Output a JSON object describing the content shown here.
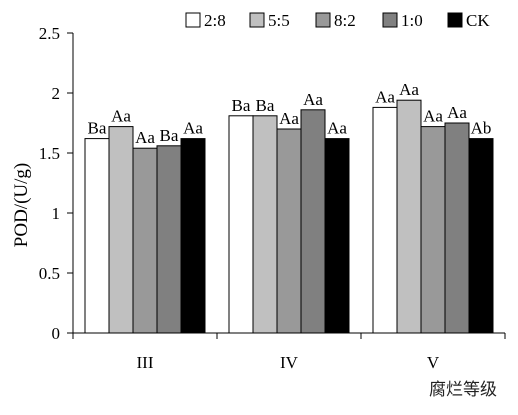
{
  "chart_data": {
    "type": "bar",
    "ylabel": "POD/(U/g)",
    "xlabel": "腐烂等级",
    "ylim": [
      0,
      2.5
    ],
    "yticks": [
      "0",
      "0.5",
      "1",
      "1.5",
      "2",
      "2.5"
    ],
    "categories": [
      "III",
      "IV",
      "V"
    ],
    "legend_position": "top",
    "grid": false,
    "series": [
      {
        "name": "2:8",
        "color": "#ffffff",
        "values": [
          1.62,
          1.81,
          1.88
        ],
        "labels": [
          "Ba",
          "Ba",
          "Aa"
        ]
      },
      {
        "name": "5:5",
        "color": "#c0c0c0",
        "values": [
          1.72,
          1.81,
          1.94
        ],
        "labels": [
          "Aa",
          "Ba",
          "Aa"
        ]
      },
      {
        "name": "8:2",
        "color": "#999999",
        "values": [
          1.54,
          1.7,
          1.72
        ],
        "labels": [
          "Aa",
          "Aa",
          "Aa"
        ]
      },
      {
        "name": "1:0",
        "color": "#808080",
        "values": [
          1.56,
          1.86,
          1.75
        ],
        "labels": [
          "Ba",
          "Aa",
          "Aa"
        ]
      },
      {
        "name": "CK",
        "color": "#000000",
        "values": [
          1.62,
          1.62,
          1.62
        ],
        "labels": [
          "Aa",
          "Aa",
          "Ab"
        ]
      }
    ]
  }
}
